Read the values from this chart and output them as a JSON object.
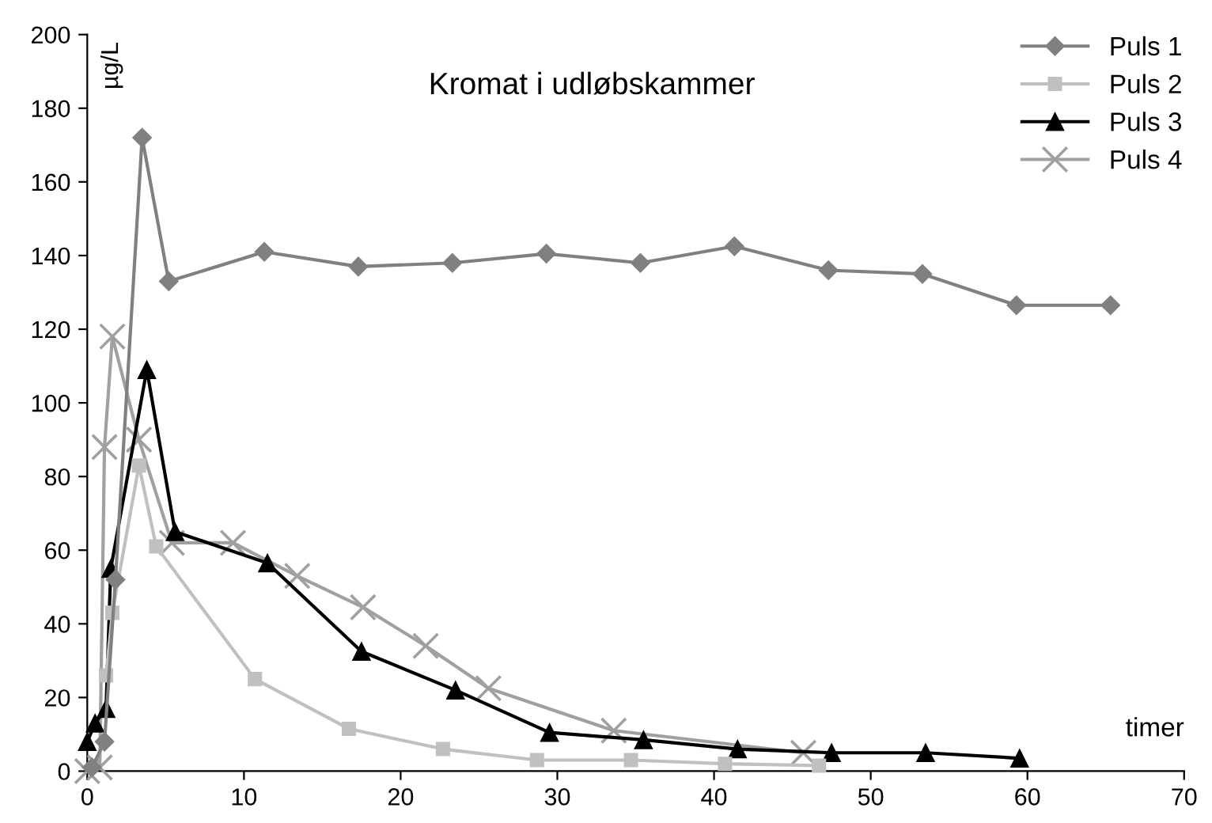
{
  "chart_data": {
    "type": "line",
    "title": "Kromat i udløbskammer",
    "xlabel": "timer",
    "ylabel": "µg/L",
    "xlim": [
      0,
      70
    ],
    "xticks": [
      0,
      10,
      20,
      30,
      40,
      50,
      60,
      70
    ],
    "ylim": [
      0,
      200
    ],
    "yticks": [
      0,
      20,
      40,
      60,
      80,
      100,
      120,
      140,
      160,
      180,
      200
    ],
    "grid": false,
    "legend": "top right",
    "line_style": "solid",
    "series": [
      {
        "name": "Puls 1",
        "color": "#808080",
        "marker": "diamond",
        "x": [
          0.3,
          1.1,
          1.8,
          3.5,
          5.2,
          11.3,
          17.3,
          23.3,
          29.3,
          35.3,
          41.3,
          47.3,
          53.3,
          59.3,
          65.3
        ],
        "values": [
          1,
          8,
          52,
          172,
          133,
          141,
          137,
          138,
          140.5,
          138,
          142.5,
          136,
          135,
          126.5,
          126.5
        ]
      },
      {
        "name": "Puls 2",
        "color": "#c0c0c0",
        "marker": "square",
        "x": [
          1.2,
          1.6,
          3.3,
          4.4,
          10.7,
          16.7,
          22.7,
          28.7,
          34.7,
          40.7,
          46.7
        ],
        "values": [
          26,
          43,
          83,
          61,
          25,
          11.5,
          6,
          3,
          3,
          2,
          1.5
        ]
      },
      {
        "name": "Puls 3",
        "color": "#000000",
        "marker": "triangle",
        "x": [
          0,
          0.5,
          1.2,
          1.5,
          3.8,
          5.6,
          11.5,
          17.5,
          23.5,
          29.5,
          35.5,
          41.5,
          47.5,
          53.5,
          59.5
        ],
        "values": [
          8,
          13,
          17,
          55,
          109,
          65,
          56.5,
          32.5,
          22,
          10.5,
          8.5,
          6,
          5,
          5,
          3.5
        ]
      },
      {
        "name": "Puls 4",
        "color": "#a0a0a0",
        "marker": "cross",
        "x": [
          0,
          0.8,
          1.1,
          1.6,
          3.3,
          5.4,
          9.3,
          13.4,
          17.6,
          21.6,
          25.6,
          33.6,
          45.7
        ],
        "values": [
          0,
          1,
          88,
          118,
          90,
          62,
          62,
          53,
          44.5,
          34,
          22.5,
          11,
          5
        ]
      }
    ]
  }
}
